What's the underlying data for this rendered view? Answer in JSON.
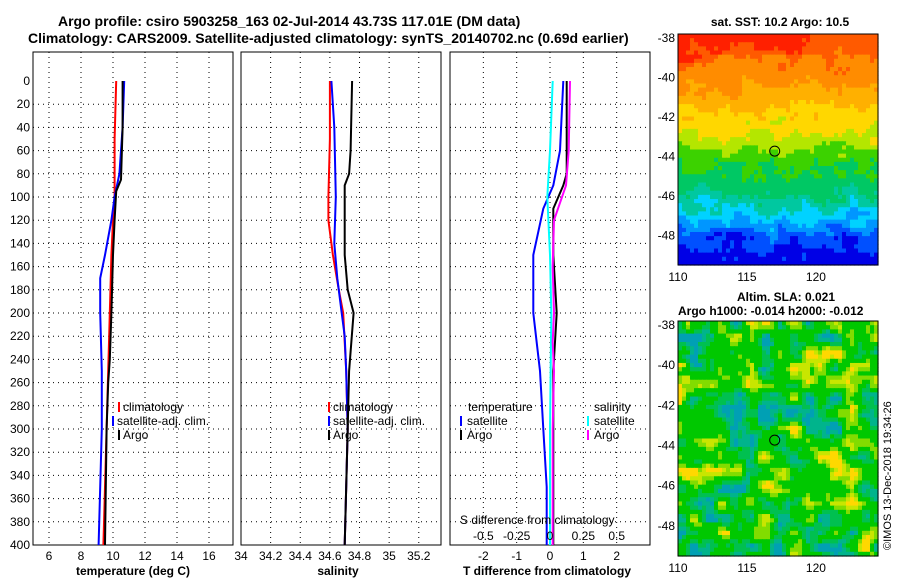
{
  "header": {
    "title_line1": "Argo profile: csiro 5903258_163 02-Jul-2014 43.73S 117.01E (DM data)",
    "title_line2": "Climatology: CARS2009. Satellite-adjusted climatology: synTS_20140702.nc (0.69d earlier)"
  },
  "colors": {
    "climatology": "#ff0000",
    "satellite_adj": "#0000ff",
    "argo": "#000000",
    "s_satellite": "#00ffff",
    "s_argo": "#ff00ff"
  },
  "credit": "©IMOS 13-Dec-2018 19:34:26",
  "chart_data": [
    {
      "type": "line",
      "id": "temperature",
      "xlabel": "temperature (deg C)",
      "xlim": [
        5,
        17.5
      ],
      "xticks": [
        6,
        8,
        10,
        12,
        14,
        16
      ],
      "ylim": [
        400,
        0
      ],
      "yticks": [
        0,
        20,
        40,
        60,
        80,
        100,
        120,
        140,
        160,
        180,
        200,
        220,
        240,
        260,
        280,
        300,
        320,
        340,
        360,
        380,
        400
      ],
      "legend": [
        "climatology",
        "satellite-adj. clim.",
        "Argo"
      ],
      "series": [
        {
          "name": "climatology",
          "color": "#ff0000",
          "x": [
            10.2,
            10.1,
            10.1,
            10.0,
            9.9,
            9.8,
            9.7,
            9.6,
            9.5,
            9.4
          ],
          "y": [
            0,
            50,
            100,
            120,
            150,
            200,
            250,
            300,
            350,
            400
          ]
        },
        {
          "name": "satellite-adj. clim.",
          "color": "#0000ff",
          "x": [
            10.7,
            10.6,
            10.4,
            10.1,
            9.9,
            9.5,
            9.2,
            9.2,
            9.3,
            9.3,
            9.2,
            9.1
          ],
          "y": [
            0,
            40,
            80,
            100,
            120,
            150,
            170,
            200,
            250,
            300,
            350,
            400
          ]
        },
        {
          "name": "Argo",
          "color": "#000000",
          "x": [
            10.6,
            10.6,
            10.5,
            10.2,
            10.1,
            10.0,
            9.9,
            9.8,
            9.7,
            9.6,
            9.5
          ],
          "y": [
            0,
            40,
            85,
            95,
            120,
            150,
            200,
            240,
            260,
            300,
            400
          ]
        }
      ]
    },
    {
      "type": "line",
      "id": "salinity",
      "xlabel": "salinity",
      "xlim": [
        34.0,
        35.35
      ],
      "xticks": [
        34,
        34.2,
        34.4,
        34.6,
        34.8,
        35,
        35.2
      ],
      "ylim": [
        400,
        0
      ],
      "legend": [
        "climatology",
        "satellite-adj. clim.",
        "Argo"
      ],
      "series": [
        {
          "name": "climatology",
          "color": "#ff0000",
          "x": [
            34.6,
            34.6,
            34.59,
            34.59,
            34.62,
            34.66,
            34.69,
            34.71,
            34.72,
            34.71,
            34.7
          ],
          "y": [
            0,
            50,
            100,
            120,
            150,
            180,
            200,
            250,
            300,
            350,
            400
          ]
        },
        {
          "name": "satellite-adj. clim.",
          "color": "#0000ff",
          "x": [
            34.61,
            34.63,
            34.64,
            34.63,
            34.65,
            34.68,
            34.7,
            34.71,
            34.72,
            34.71,
            34.7
          ],
          "y": [
            0,
            40,
            100,
            140,
            170,
            200,
            220,
            250,
            300,
            350,
            400
          ]
        },
        {
          "name": "Argo",
          "color": "#000000",
          "x": [
            34.75,
            34.74,
            34.73,
            34.7,
            34.7,
            34.72,
            34.76,
            34.73,
            34.72,
            34.7
          ],
          "y": [
            0,
            60,
            80,
            90,
            150,
            180,
            200,
            250,
            300,
            400
          ]
        }
      ]
    },
    {
      "type": "line",
      "id": "difference",
      "xlabel": "T difference from climatology",
      "xlim": [
        -3,
        3
      ],
      "xticks": [
        -2,
        -1,
        0,
        1,
        2
      ],
      "top_label": "S difference from climatology",
      "top_ticks": [
        "-0.5",
        "-0.25",
        "0",
        "0.25",
        "0.5"
      ],
      "s_scale_note": "S axis: -0.5..0.5 maps to -2..2",
      "ylim": [
        400,
        0
      ],
      "legend_left_title": "temperature",
      "legend_right_title": "salinity",
      "legend_left": [
        "satellite",
        "Argo"
      ],
      "legend_right": [
        "satellite",
        "Argo"
      ],
      "series": [
        {
          "name": "T satellite",
          "color": "#0000ff",
          "x": [
            0.4,
            0.3,
            0.1,
            -0.2,
            -0.5,
            -0.5,
            -0.3,
            -0.2,
            -0.1,
            -0.1
          ],
          "y": [
            0,
            60,
            90,
            110,
            150,
            200,
            250,
            300,
            350,
            400
          ]
        },
        {
          "name": "T Argo",
          "color": "#000000",
          "x": [
            0.5,
            0.5,
            0.4,
            0.1,
            0.1,
            0.2,
            0.1,
            0.1,
            0.1,
            0.1
          ],
          "y": [
            0,
            80,
            90,
            110,
            150,
            200,
            250,
            300,
            350,
            400
          ]
        },
        {
          "name": "S satellite",
          "color": "#00ffff",
          "x": [
            0.02,
            0.0,
            -0.02,
            0.0,
            0.01,
            0.0,
            0.0
          ],
          "y": [
            0,
            60,
            100,
            150,
            200,
            300,
            400
          ]
        },
        {
          "name": "S Argo",
          "color": "#ff00ff",
          "x": [
            0.15,
            0.14,
            0.12,
            0.03,
            0.02,
            0.03,
            0.02,
            0.03,
            0.02,
            0.02
          ],
          "y": [
            0,
            60,
            90,
            120,
            160,
            200,
            225,
            250,
            300,
            400
          ]
        }
      ]
    },
    {
      "type": "heatmap",
      "id": "sst-map",
      "title": "sat. SST: 10.2  Argo: 10.5",
      "xlim": [
        110,
        124.5
      ],
      "xticks": [
        110,
        115,
        120
      ],
      "ylim": [
        -49.5,
        -37.8
      ],
      "yticks": [
        -38,
        -40,
        -42,
        -44,
        -46,
        -48
      ],
      "marker": {
        "lon": 117.01,
        "lat": -43.73
      }
    },
    {
      "type": "heatmap",
      "id": "sla-map",
      "title_line1": "Altim. SLA: 0.021",
      "title_line2": "Argo h1000: -0.014 h2000: -0.012",
      "xlim": [
        110,
        124.5
      ],
      "xticks": [
        110,
        115,
        120
      ],
      "ylim": [
        -49.5,
        -37.8
      ],
      "yticks": [
        -38,
        -40,
        -42,
        -44,
        -46,
        -48
      ],
      "marker": {
        "lon": 117.01,
        "lat": -43.73
      }
    }
  ]
}
